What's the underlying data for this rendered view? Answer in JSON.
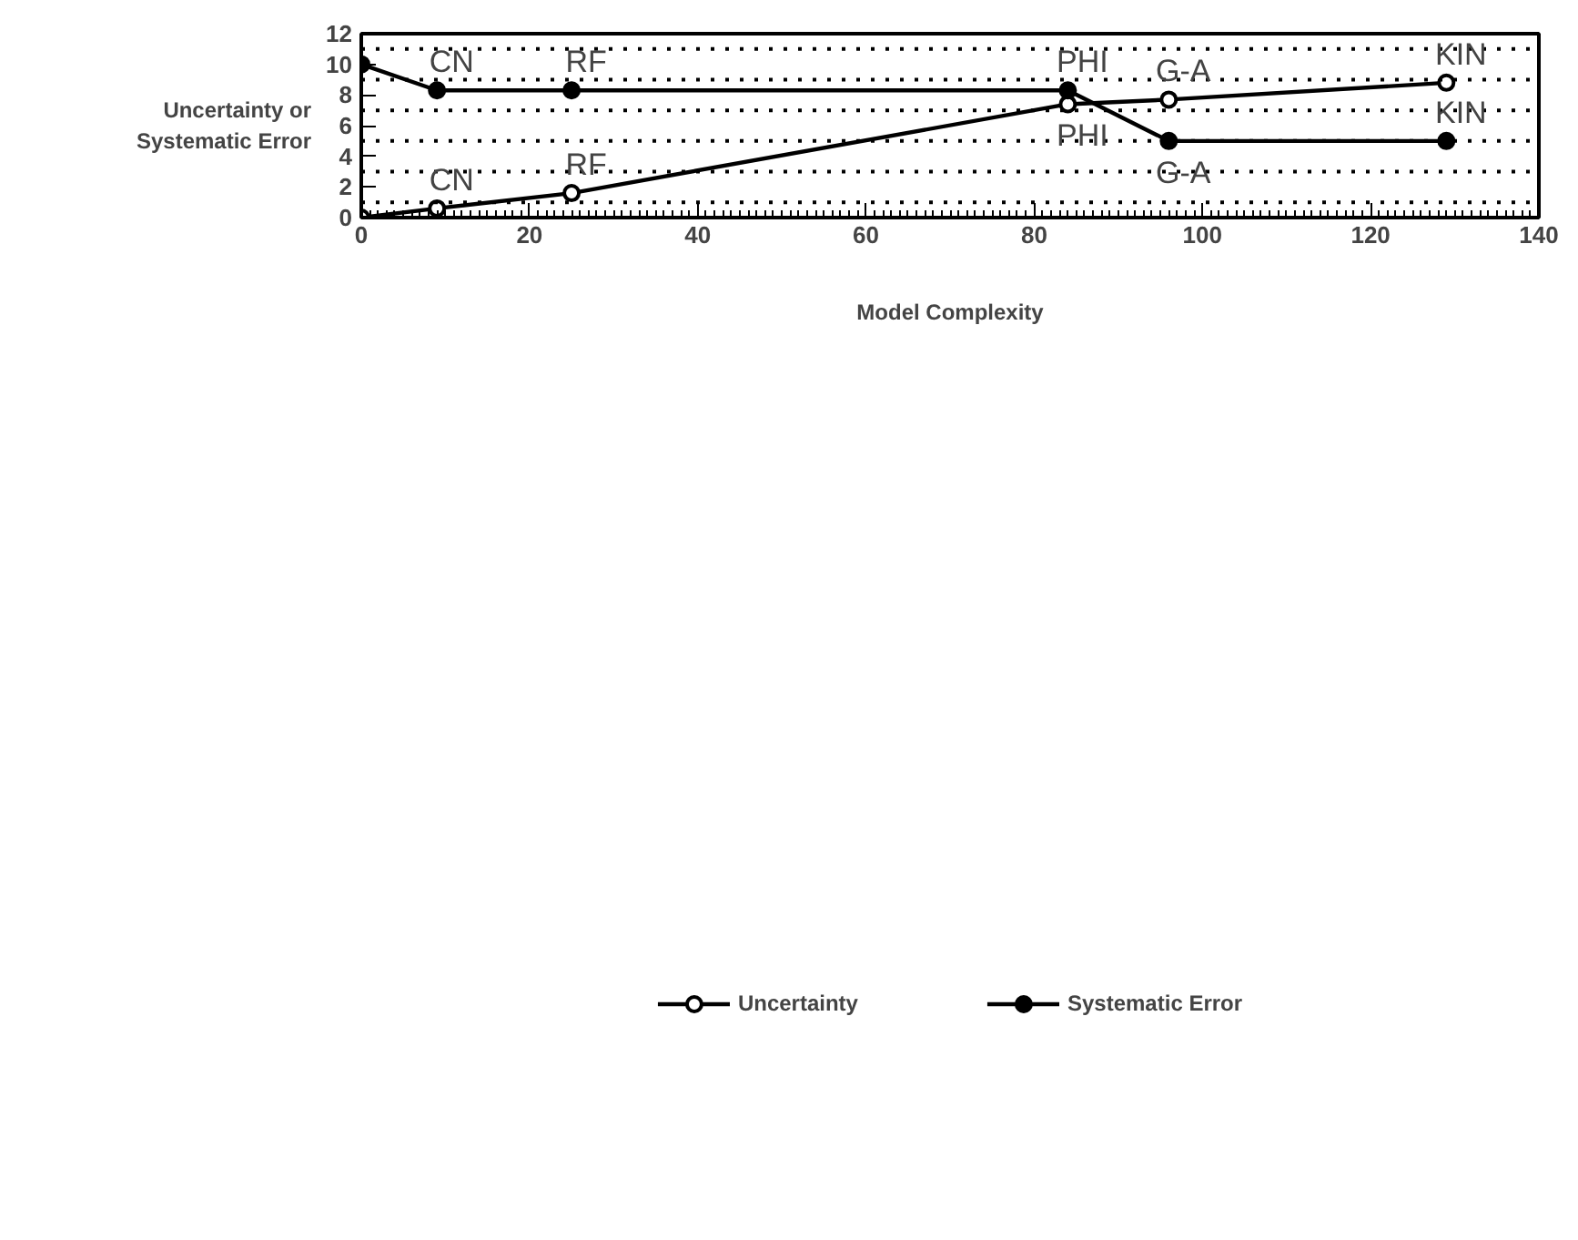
{
  "chart_data": {
    "type": "line",
    "xlabel": "Model Complexity",
    "ylabel": "Uncertainty or\nSystematic Error",
    "x": [
      0,
      9,
      25,
      84,
      96,
      129
    ],
    "series": [
      {
        "name": "Uncertainty",
        "color": "#000000",
        "values": [
          0,
          0.6,
          1.6,
          7.4,
          7.7,
          8.8
        ]
      },
      {
        "name": "Systematic Error",
        "color": "#000000",
        "values": [
          10,
          8.3,
          8.3,
          8.3,
          5,
          5
        ]
      }
    ],
    "xlim": [
      0,
      140
    ],
    "xticks": [
      0,
      20,
      40,
      60,
      80,
      100,
      120,
      140
    ],
    "ylim": [
      0,
      12
    ],
    "yticks": [
      0,
      2,
      4,
      6,
      8,
      10,
      12
    ],
    "ref_lines": [
      {
        "axis": "y",
        "value": 1,
        "label": null,
        "line_style": "dotted",
        "color": "#000000"
      },
      {
        "axis": "y",
        "value": 3,
        "label": null,
        "line_style": "dotted",
        "color": "#000000"
      },
      {
        "axis": "y",
        "value": 5,
        "label": null,
        "line_style": "dotted",
        "color": "#000000"
      },
      {
        "axis": "y",
        "value": 7,
        "label": null,
        "line_style": "dotted",
        "color": "#000000"
      },
      {
        "axis": "y",
        "value": 9,
        "label": null,
        "line_style": "dotted",
        "color": "#000000"
      },
      {
        "axis": "y",
        "value": 11,
        "label": null,
        "line_style": "dotted",
        "color": "#000000"
      }
    ],
    "annotations": [
      {
        "text": "CN",
        "x": 9,
        "y": 0.6
      },
      {
        "text": "RF",
        "x": 25,
        "y": 1.6
      },
      {
        "text": "PHI",
        "x": 84,
        "y": 7.4
      },
      {
        "text": "G-A",
        "x": 96,
        "y": 7.7
      },
      {
        "text": "KIN",
        "x": 129,
        "y": 8.8
      },
      {
        "text": "CN",
        "x": 9,
        "y": 8.3
      },
      {
        "text": "RF",
        "x": 25,
        "y": 8.3
      },
      {
        "text": "PHI",
        "x": 84,
        "y": 8.3
      },
      {
        "text": "G-A",
        "x": 96,
        "y": 5
      },
      {
        "text": "KIN",
        "x": 129,
        "y": 5
      }
    ],
    "grid": false,
    "legend": "bottom",
    "marker": "circle",
    "line_style": "solid"
  }
}
